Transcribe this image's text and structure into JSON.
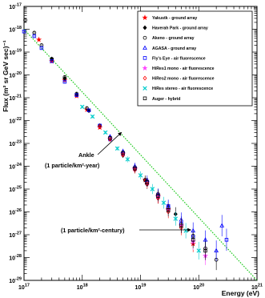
{
  "chart_data": {
    "type": "scatter",
    "title": "",
    "xlabel": "Energy (eV)",
    "ylabel": "Flux (m² sr GeV sec)⁻¹",
    "x_scale": "log",
    "y_scale": "log",
    "xlim": [
      1e+17,
      1e+21
    ],
    "ylim": [
      1e-29,
      1e-17
    ],
    "x_tick_labels": [
      {
        "base": "10",
        "exp": "17",
        "value": 1e+17
      },
      {
        "base": "10",
        "exp": "18",
        "value": 1e+18
      },
      {
        "base": "10",
        "exp": "19",
        "value": 1e+19
      },
      {
        "base": "10",
        "exp": "20",
        "value": 1e+20
      },
      {
        "base": "10",
        "exp": "21",
        "value": 1e+21
      }
    ],
    "y_tick_labels": [
      {
        "base": "10",
        "exp": "-17",
        "value": 1e-17
      },
      {
        "base": "10",
        "exp": "-18",
        "value": 1e-18
      },
      {
        "base": "10",
        "exp": "-19",
        "value": 1e-19
      },
      {
        "base": "10",
        "exp": "-20",
        "value": 1e-20
      },
      {
        "base": "10",
        "exp": "-21",
        "value": 1e-21
      },
      {
        "base": "10",
        "exp": "-22",
        "value": 1e-22
      },
      {
        "base": "10",
        "exp": "-23",
        "value": 1e-23
      },
      {
        "base": "10",
        "exp": "-24",
        "value": 1e-24
      },
      {
        "base": "10",
        "exp": "-25",
        "value": 1e-25
      },
      {
        "base": "10",
        "exp": "-26",
        "value": 1e-26
      },
      {
        "base": "10",
        "exp": "-27",
        "value": 1e-27
      },
      {
        "base": "10",
        "exp": "-28",
        "value": 1e-28
      },
      {
        "base": "10",
        "exp": "-29",
        "value": 1e-29
      }
    ],
    "grid": false,
    "legend_position": "top-right",
    "reference_line": {
      "color": "#22cc22",
      "style": "dotted",
      "points": [
        [
          1e+17,
          1e-18
        ],
        [
          1e+21,
          1e-29
        ]
      ]
    },
    "annotations": [
      {
        "line1": "Ankle",
        "line2": "(1 particle/km²-year)",
        "x": 5e+18,
        "y": 3e-23
      },
      {
        "line1": "(1 particle/km²-century)",
        "line2": "",
        "x": 8e+19,
        "y": 9.5e-28
      }
    ],
    "series": [
      {
        "name": "Yakustk - ground array",
        "marker": "star",
        "color": "#ff0000",
        "filled": true,
        "points": [
          [
            1.8e+17,
            3.5e-19
          ],
          [
            3e+17,
            4e-20
          ],
          [
            5e+17,
            6e-21
          ],
          [
            8e+17,
            1.2e-21
          ],
          [
            1.2e+18,
            3e-22
          ],
          [
            2e+18,
            5e-23
          ],
          [
            3e+18,
            1.6e-23
          ],
          [
            5e+18,
            3.5e-24
          ],
          [
            8e+18,
            8e-25
          ],
          [
            1.2e+19,
            2.5e-25
          ],
          [
            2e+19,
            5e-26
          ],
          [
            3e+19,
            1.3e-26
          ],
          [
            5e+19,
            2.5e-27
          ],
          [
            8e+19,
            4e-28
          ]
        ]
      },
      {
        "name": "Haverah Park - ground array",
        "marker": "diamond",
        "color": "#000000",
        "filled": true,
        "points": [
          [
            3e+17,
            5e-20
          ],
          [
            5e+17,
            7e-21
          ],
          [
            8e+17,
            1.4e-21
          ],
          [
            1.3e+18,
            2.7e-22
          ],
          [
            2e+18,
            6e-23
          ],
          [
            3e+18,
            1.5e-23
          ],
          [
            5e+18,
            3e-24
          ],
          [
            8e+18,
            7e-25
          ],
          [
            1.3e+19,
            1.6e-25
          ],
          [
            2e+19,
            4e-26
          ],
          [
            4e+19,
            8e-27
          ]
        ]
      },
      {
        "name": "Akeno - ground array",
        "marker": "circle",
        "color": "#000000",
        "filled": false,
        "points": [
          [
            1.05e+17,
            2.5e-18
          ],
          [
            1.5e+17,
            7e-19
          ],
          [
            2e+17,
            2e-19
          ],
          [
            3e+17,
            5e-20
          ],
          [
            5e+17,
            8e-21
          ],
          [
            8e+17,
            1.5e-21
          ],
          [
            1.2e+18,
            3.5e-22
          ],
          [
            2e+18,
            6e-23
          ],
          [
            3e+18,
            1.8e-23
          ],
          [
            5e+18,
            4e-24
          ],
          [
            8e+18,
            9e-25
          ],
          [
            1.2e+19,
            2.5e-25
          ],
          [
            2e+19,
            6e-26
          ],
          [
            3e+19,
            1.5e-26
          ],
          [
            5e+19,
            3e-27
          ],
          [
            8e+19,
            9e-28
          ],
          [
            1.3e+20,
            2.5e-28
          ],
          [
            2e+20,
            8e-29
          ]
        ]
      },
      {
        "name": "AGASA - ground array",
        "marker": "triangle",
        "color": "#0000ff",
        "filled": false,
        "points": [
          [
            3e+18,
            2e-23
          ],
          [
            5e+18,
            4.5e-24
          ],
          [
            8e+18,
            1e-24
          ],
          [
            1.3e+19,
            2.5e-25
          ],
          [
            2e+19,
            6e-26
          ],
          [
            3e+19,
            1.8e-26
          ],
          [
            5e+19,
            4.5e-27
          ],
          [
            8e+19,
            1.5e-27
          ],
          [
            1.3e+20,
            6e-28
          ],
          [
            2e+20,
            2e-28
          ],
          [
            2.5e+20,
            2.5e-27
          ]
        ]
      },
      {
        "name": "Fly's Eye - air fluorescence",
        "marker": "square",
        "color": "#0000ff",
        "filled": false,
        "points": [
          [
            1e+17,
            8e-19
          ],
          [
            1.5e+17,
            5e-19
          ],
          [
            2e+17,
            1.5e-19
          ],
          [
            3e+17,
            4e-20
          ],
          [
            5e+17,
            5e-21
          ],
          [
            8e+17,
            1.3e-21
          ],
          [
            1.3e+18,
            2.8e-22
          ],
          [
            2e+18,
            6e-23
          ],
          [
            3e+18,
            1.5e-23
          ],
          [
            5e+18,
            3.5e-24
          ],
          [
            8e+18,
            8e-25
          ],
          [
            1.3e+19,
            2e-25
          ],
          [
            2e+19,
            5e-26
          ],
          [
            3e+19,
            1.8e-26
          ],
          [
            5e+19,
            3e-27
          ],
          [
            8e+19,
            8e-28
          ],
          [
            3e+20,
            6e-28
          ]
        ]
      },
      {
        "name": "HiRes1 mono - air fluorescence",
        "marker": "star",
        "color": "#ff44ff",
        "filled": true,
        "points": [
          [
            3e+18,
            1.6e-23
          ],
          [
            5e+18,
            3.5e-24
          ],
          [
            8e+18,
            7.5e-25
          ],
          [
            1.3e+19,
            1.8e-25
          ],
          [
            2e+19,
            4.5e-26
          ],
          [
            3e+19,
            1.2e-26
          ],
          [
            5e+19,
            2.5e-27
          ],
          [
            8e+19,
            5e-28
          ],
          [
            1.3e+20,
            1.2e-28
          ]
        ]
      },
      {
        "name": "HiRes2 mono - air fluorescence",
        "marker": "diamond",
        "color": "#ff0000",
        "filled": false,
        "points": [
          [
            2e+18,
            5.5e-23
          ],
          [
            3e+18,
            1.5e-23
          ],
          [
            5e+18,
            3.2e-24
          ],
          [
            8e+18,
            7e-25
          ],
          [
            1.3e+19,
            1.7e-25
          ],
          [
            2e+19,
            4e-26
          ],
          [
            3e+19,
            1e-26
          ],
          [
            5e+19,
            2e-27
          ]
        ]
      },
      {
        "name": "HiRes stereo - air fluorescence",
        "marker": "cross",
        "color": "#00cccc",
        "filled": true,
        "points": [
          [
            1e+18,
            4e-22
          ],
          [
            1.5e+18,
            1.5e-22
          ],
          [
            2.5e+18,
            3e-23
          ],
          [
            4e+18,
            6e-24
          ],
          [
            6e+18,
            2e-24
          ],
          [
            1e+19,
            4e-25
          ],
          [
            1.6e+19,
            1e-25
          ],
          [
            2.5e+19,
            2.5e-26
          ],
          [
            4e+19,
            5e-27
          ],
          [
            6e+19,
            1.5e-27
          ],
          [
            1e+20,
            2e-28
          ]
        ]
      },
      {
        "name": "Auger - hybrid",
        "marker": "square",
        "color": "#000000",
        "filled": false,
        "points": [
          [
            3e+18,
            1.7e-23
          ],
          [
            5e+18,
            3.8e-24
          ],
          [
            8e+18,
            8e-25
          ],
          [
            1.3e+19,
            2e-25
          ],
          [
            2e+19,
            5e-26
          ],
          [
            3e+19,
            1.2e-26
          ],
          [
            5e+19,
            2.5e-27
          ],
          [
            8e+19,
            6e-28
          ],
          [
            1.3e+20,
            2e-28
          ]
        ]
      }
    ]
  }
}
